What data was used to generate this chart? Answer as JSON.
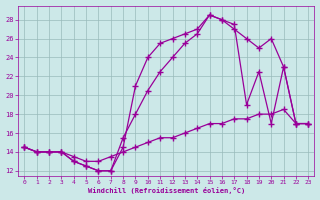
{
  "xlabel": "Windchill (Refroidissement éolien,°C)",
  "bg_color": "#cce8e8",
  "line_color": "#990099",
  "grid_color": "#99bbbb",
  "xlim": [
    -0.5,
    23.5
  ],
  "ylim": [
    11.5,
    29.5
  ],
  "xticks": [
    0,
    1,
    2,
    3,
    4,
    5,
    6,
    7,
    8,
    9,
    10,
    11,
    12,
    13,
    14,
    15,
    16,
    17,
    18,
    19,
    20,
    21,
    22,
    23
  ],
  "yticks": [
    12,
    14,
    16,
    18,
    20,
    22,
    24,
    26,
    28
  ],
  "line1_x": [
    0,
    1,
    2,
    3,
    4,
    5,
    6,
    7,
    8,
    9,
    10,
    11,
    12,
    13,
    14,
    15,
    16,
    17,
    18,
    19,
    20,
    21,
    22,
    23
  ],
  "line1_y": [
    14.5,
    14.0,
    14.0,
    14.0,
    13.0,
    12.5,
    12.0,
    12.0,
    14.5,
    21.0,
    24.0,
    25.5,
    26.0,
    26.5,
    27.0,
    28.5,
    28.0,
    27.5,
    19.0,
    22.5,
    17.0,
    23.0,
    17.0,
    17.0
  ],
  "line2_x": [
    0,
    1,
    2,
    3,
    4,
    5,
    6,
    7,
    8,
    9,
    10,
    11,
    12,
    13,
    14,
    15,
    16,
    17,
    18,
    19,
    20,
    21,
    22,
    23
  ],
  "line2_y": [
    14.5,
    14.0,
    14.0,
    14.0,
    13.0,
    12.5,
    12.0,
    12.0,
    15.5,
    18.0,
    20.5,
    22.5,
    24.0,
    25.5,
    26.5,
    28.5,
    28.0,
    27.0,
    26.0,
    25.0,
    26.0,
    23.0,
    17.0,
    17.0
  ],
  "line3_x": [
    0,
    1,
    2,
    3,
    4,
    5,
    6,
    7,
    8,
    9,
    10,
    11,
    12,
    13,
    14,
    15,
    16,
    17,
    18,
    19,
    20,
    21,
    22,
    23
  ],
  "line3_y": [
    14.5,
    14.0,
    14.0,
    14.0,
    13.5,
    13.0,
    13.0,
    13.5,
    14.0,
    14.5,
    15.0,
    15.5,
    15.5,
    16.0,
    16.5,
    17.0,
    17.0,
    17.5,
    17.5,
    18.0,
    18.0,
    18.5,
    17.0,
    17.0
  ]
}
